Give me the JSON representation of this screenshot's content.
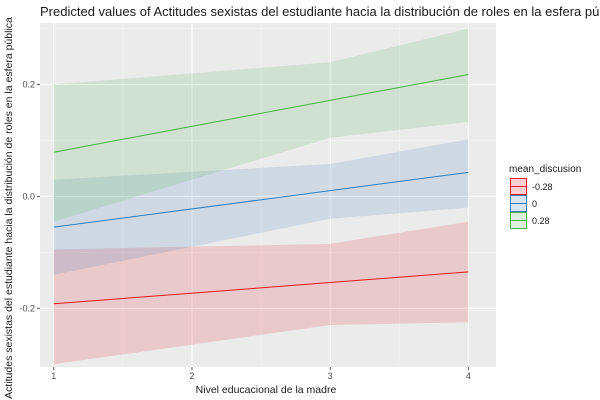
{
  "chart_data": {
    "type": "line",
    "title": "Predicted values of Actitudes sexistas del estudiante hacia la distribución de roles en la esfera pública",
    "xlabel": "Nivel educacional de la madre",
    "ylabel": "Actitudes sexistas del estudiante hacia la distribución de roles en la esfera pública",
    "x": [
      1,
      4
    ],
    "xlim": [
      0.9,
      4.2
    ],
    "ylim": [
      -0.305,
      0.31
    ],
    "x_ticks": [
      1,
      2,
      3,
      4
    ],
    "x_tick_labels": [
      "1",
      "2",
      "3",
      "4"
    ],
    "y_ticks": [
      -0.2,
      0.0,
      0.2
    ],
    "y_tick_labels": [
      "-0.2",
      "0.0",
      "0.2"
    ],
    "grid": true,
    "legend": {
      "title": "mean_discusion",
      "placement": "right"
    },
    "series": [
      {
        "name": "-0.28",
        "color": "#e41a1c",
        "y": [
          -0.192,
          -0.135
        ],
        "ci_lower": [
          -0.3,
          -0.225
        ],
        "ci_upper": [
          -0.095,
          -0.045
        ],
        "ci_mid_x": 3,
        "ci_mid_lower": -0.23,
        "ci_mid_upper": -0.085
      },
      {
        "name": "0",
        "color": "#377eb8",
        "y": [
          -0.055,
          0.043
        ],
        "ci_lower": [
          -0.14,
          -0.02
        ],
        "ci_upper": [
          0.03,
          0.102
        ],
        "ci_mid_x": 3,
        "ci_mid_lower": -0.04,
        "ci_mid_upper": 0.058
      },
      {
        "name": "0.28",
        "color": "#4daf4a",
        "y": [
          0.079,
          0.218
        ],
        "ci_lower": [
          -0.045,
          0.133
        ],
        "ci_upper": [
          0.2,
          0.3
        ],
        "ci_mid_x": 3,
        "ci_mid_lower": 0.105,
        "ci_mid_upper": 0.24
      }
    ]
  }
}
